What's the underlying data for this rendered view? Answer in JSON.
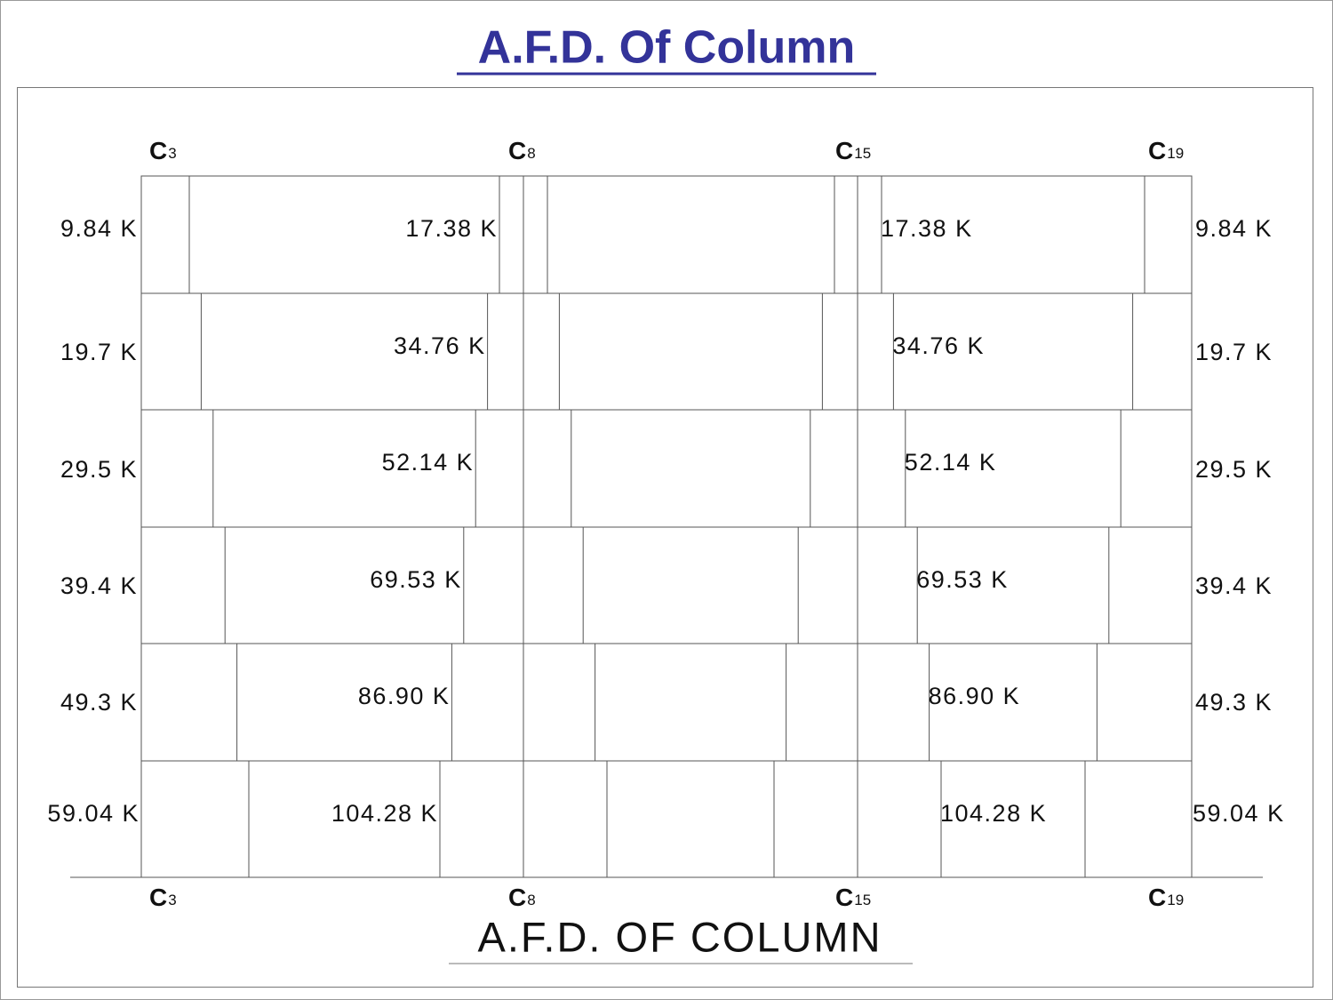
{
  "title": "A.F.D.  Of  Column",
  "caption": "A.F.D.  OF   COLUMN",
  "columns": [
    {
      "letter": "C",
      "sub": "3",
      "forces": [
        "9.84 K",
        "19.7 K",
        "29.5 K",
        "39.4 K",
        "49.3 K",
        "59.04 K"
      ]
    },
    {
      "letter": "C",
      "sub": "8",
      "forces": [
        "17.38 K",
        "34.76 K",
        "52.14 K",
        "69.53 K",
        "86.90 K",
        "104.28 K"
      ]
    },
    {
      "letter": "C",
      "sub": "15",
      "forces": [
        "17.38 K",
        "34.76 K",
        "52.14 K",
        "69.53 K",
        "86.90 K",
        "104.28 K"
      ]
    },
    {
      "letter": "C",
      "sub": "19",
      "forces": [
        "9.84 K",
        "19.7 K",
        "29.5 K",
        "39.4 K",
        "49.3 K",
        "59.04 K"
      ]
    }
  ]
}
